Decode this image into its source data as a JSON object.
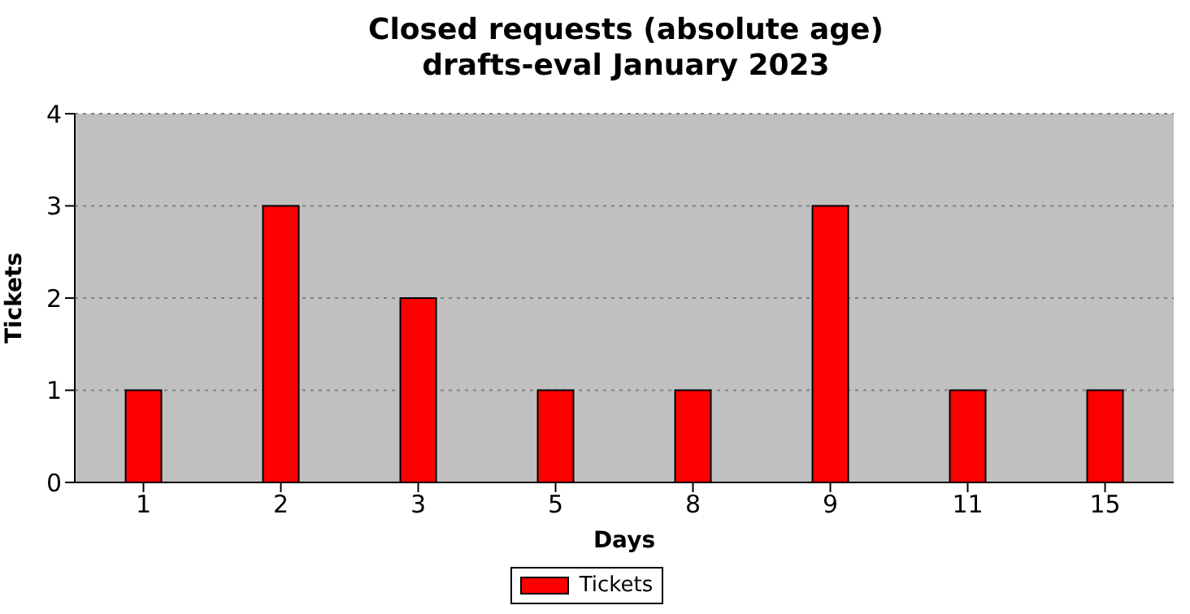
{
  "chart_data": {
    "type": "bar",
    "title": "Closed requests (absolute age)",
    "subtitle": "drafts-eval January 2023",
    "xlabel": "Days",
    "ylabel": "Tickets",
    "categories": [
      "1",
      "2",
      "3",
      "5",
      "8",
      "9",
      "11",
      "15"
    ],
    "series": [
      {
        "name": "Tickets",
        "color": "#ff0000",
        "values": [
          1,
          3,
          2,
          1,
          1,
          3,
          1,
          1
        ]
      }
    ],
    "ylim": [
      0,
      4
    ],
    "yticks": [
      0,
      1,
      2,
      3,
      4
    ],
    "grid": "y",
    "legend": "bottom"
  }
}
